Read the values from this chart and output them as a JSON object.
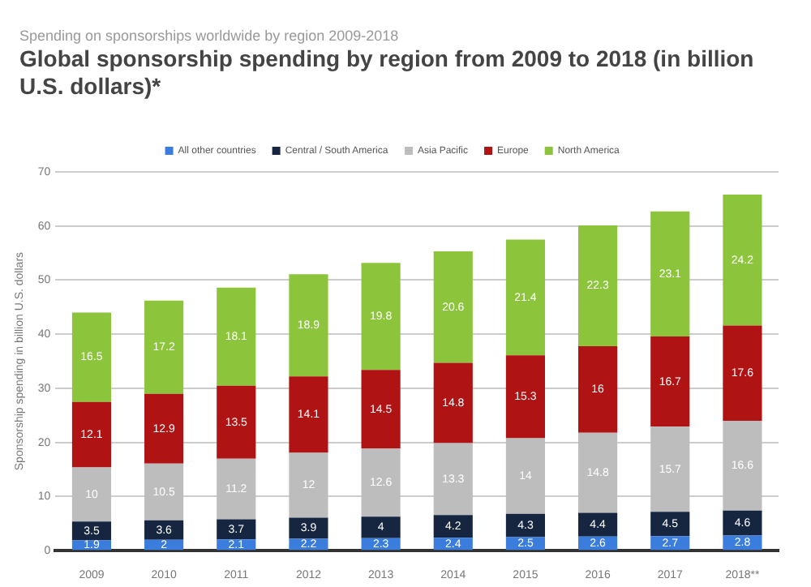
{
  "chart_data": {
    "type": "bar",
    "subtitle": "Spending on sponsorships worldwide by region 2009-2018",
    "title": "Global sponsorship spending by region from 2009 to 2018 (in billion U.S. dollars)*",
    "ylabel": "Sponsorship spending in billion U.S. dollars",
    "categories": [
      "2009",
      "2010",
      "2011",
      "2012",
      "2013",
      "2014",
      "2015",
      "2016",
      "2017",
      "2018**"
    ],
    "stacked": true,
    "data_labels": true,
    "legend": "top",
    "grid": "y",
    "ylim": [
      0,
      70
    ],
    "yticks": [
      0,
      10,
      20,
      30,
      40,
      50,
      60,
      70
    ],
    "series": [
      {
        "name": "All other countries",
        "color": "#3b7ddd",
        "values": [
          1.9,
          2,
          2.1,
          2.2,
          2.3,
          2.4,
          2.5,
          2.6,
          2.7,
          2.8
        ]
      },
      {
        "name": "Central / South America",
        "color": "#162640",
        "values": [
          3.5,
          3.6,
          3.7,
          3.9,
          4,
          4.2,
          4.3,
          4.4,
          4.5,
          4.6
        ]
      },
      {
        "name": "Asia Pacific",
        "color": "#bdbdbd",
        "values": [
          10,
          10.5,
          11.2,
          12,
          12.6,
          13.3,
          14,
          14.8,
          15.7,
          16.6
        ]
      },
      {
        "name": "Europe",
        "color": "#b01313",
        "values": [
          12.1,
          12.9,
          13.5,
          14.1,
          14.5,
          14.8,
          15.3,
          16,
          16.7,
          17.6
        ]
      },
      {
        "name": "North America",
        "color": "#8cc43c",
        "values": [
          16.5,
          17.2,
          18.1,
          18.9,
          19.8,
          20.6,
          21.4,
          22.3,
          23.1,
          24.2
        ]
      }
    ]
  }
}
